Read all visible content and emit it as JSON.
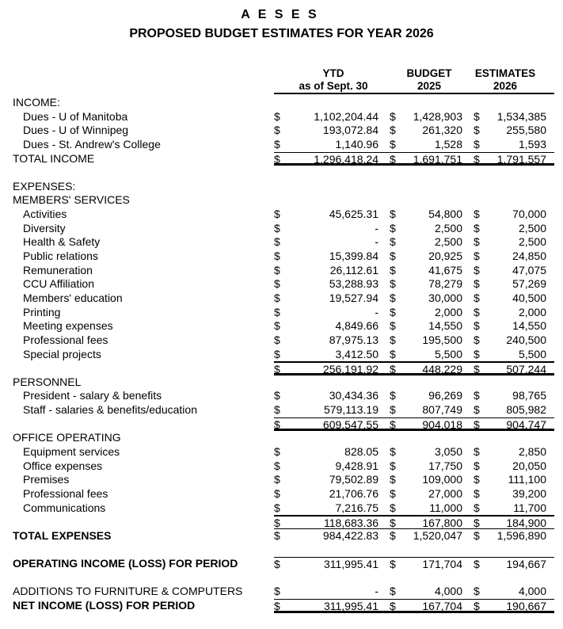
{
  "title": "A E S E S",
  "subtitle": "PROPOSED BUDGET ESTIMATES FOR YEAR 2026",
  "columns": {
    "ytd": {
      "line1": "YTD",
      "line2": "as of Sept. 30"
    },
    "budget": {
      "line1": "BUDGET",
      "line2": "2025"
    },
    "estimates": {
      "line1": "ESTIMATES",
      "line2": "2026"
    }
  },
  "currency": "$",
  "rows": [
    {
      "label": "INCOME:",
      "kind": "section"
    },
    {
      "label": "Dues - U of Manitoba",
      "kind": "item",
      "ytd": "1,102,204.44",
      "budget": "1,428,903",
      "estimate": "1,534,385"
    },
    {
      "label": "Dues - U of Winnipeg",
      "kind": "item",
      "ytd": "193,072.84",
      "budget": "261,320",
      "estimate": "255,580"
    },
    {
      "label": "Dues - St. Andrew's College",
      "kind": "item",
      "ytd": "1,140.96",
      "budget": "1,528",
      "estimate": "1,593"
    },
    {
      "label": "TOTAL INCOME",
      "kind": "total",
      "ytd": "1,296,418.24",
      "budget": "1,691,751",
      "estimate": "1,791,557"
    },
    {
      "label": "EXPENSES:",
      "kind": "section"
    },
    {
      "label": "MEMBERS' SERVICES",
      "kind": "section"
    },
    {
      "label": "Activities",
      "kind": "item",
      "ytd": "45,625.31",
      "budget": "54,800",
      "estimate": "70,000"
    },
    {
      "label": "Diversity",
      "kind": "item",
      "ytd": "-",
      "budget": "2,500",
      "estimate": "2,500"
    },
    {
      "label": "Health & Safety",
      "kind": "item",
      "ytd": "-",
      "budget": "2,500",
      "estimate": "2,500"
    },
    {
      "label": "Public relations",
      "kind": "item",
      "ytd": "15,399.84",
      "budget": "20,925",
      "estimate": "24,850"
    },
    {
      "label": "Remuneration",
      "kind": "item",
      "ytd": "26,112.61",
      "budget": "41,675",
      "estimate": "47,075"
    },
    {
      "label": "CCU Affiliation",
      "kind": "item",
      "ytd": "53,288.93",
      "budget": "78,279",
      "estimate": "57,269"
    },
    {
      "label": "Members' education",
      "kind": "item",
      "ytd": "19,527.94",
      "budget": "30,000",
      "estimate": "40,500"
    },
    {
      "label": "Printing",
      "kind": "item",
      "ytd": "-",
      "budget": "2,000",
      "estimate": "2,000"
    },
    {
      "label": "Meeting expenses",
      "kind": "item",
      "ytd": "4,849.66",
      "budget": "14,550",
      "estimate": "14,550"
    },
    {
      "label": "Professional fees",
      "kind": "item",
      "ytd": "87,975.13",
      "budget": "195,500",
      "estimate": "240,500"
    },
    {
      "label": "Special projects",
      "kind": "item",
      "ytd": "3,412.50",
      "budget": "5,500",
      "estimate": "5,500"
    },
    {
      "label": "",
      "kind": "subtotal",
      "ytd": "256,191.92",
      "budget": "448,229",
      "estimate": "507,244"
    },
    {
      "label": "PERSONNEL",
      "kind": "section"
    },
    {
      "label": "President - salary & benefits",
      "kind": "item",
      "ytd": "30,434.36",
      "budget": "96,269",
      "estimate": "98,765"
    },
    {
      "label": "Staff - salaries & benefits/education",
      "kind": "item",
      "ytd": "579,113.19",
      "budget": "807,749",
      "estimate": "805,982"
    },
    {
      "label": "",
      "kind": "subtotal",
      "ytd": "609,547.55",
      "budget": "904,018",
      "estimate": "904,747"
    },
    {
      "label": "OFFICE OPERATING",
      "kind": "section"
    },
    {
      "label": "Equipment services",
      "kind": "item",
      "ytd": "828.05",
      "budget": "3,050",
      "estimate": "2,850"
    },
    {
      "label": "Office expenses",
      "kind": "item",
      "ytd": "9,428.91",
      "budget": "17,750",
      "estimate": "20,050"
    },
    {
      "label": "Premises",
      "kind": "item",
      "ytd": "79,502.89",
      "budget": "109,000",
      "estimate": "111,100"
    },
    {
      "label": "Professional fees",
      "kind": "item",
      "ytd": "21,706.76",
      "budget": "27,000",
      "estimate": "39,200"
    },
    {
      "label": "Communications",
      "kind": "item",
      "ytd": "7,216.75",
      "budget": "11,000",
      "estimate": "11,700"
    },
    {
      "label": "",
      "kind": "subtotal",
      "ytd": "118,683.36",
      "budget": "167,800",
      "estimate": "184,900"
    },
    {
      "label": "TOTAL EXPENSES",
      "kind": "grand-total",
      "ytd": "984,422.83",
      "budget": "1,520,047",
      "estimate": "1,596,890"
    },
    {
      "label": "OPERATING INCOME (LOSS) FOR PERIOD",
      "kind": "grand-total",
      "ytd": "311,995.41",
      "budget": "171,704",
      "estimate": "194,667"
    },
    {
      "label": "ADDITIONS TO FURNITURE & COMPUTERS",
      "kind": "total",
      "ytd": "-",
      "budget": "4,000",
      "estimate": "4,000"
    },
    {
      "label": "NET INCOME (LOSS) FOR PERIOD",
      "kind": "grand-total",
      "ytd": "311,995.41",
      "budget": "167,704",
      "estimate": "190,667"
    }
  ]
}
